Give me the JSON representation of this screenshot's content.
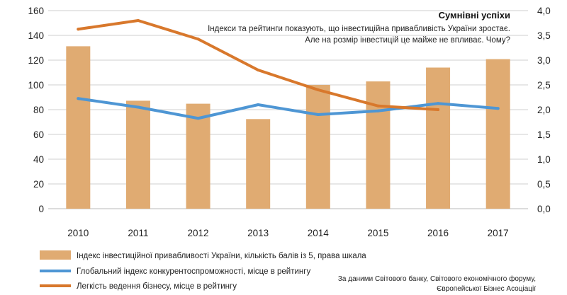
{
  "chart_data": {
    "type": "bar+line",
    "title": "Сумнівні успіхи",
    "subtitle_lines": [
      "Індекси та рейтинги показують, що інвестиційна привабливість України зростає.",
      "Але на розмір інвестицій це майже не впливає. Чому?"
    ],
    "categories": [
      "2010",
      "2011",
      "2012",
      "2013",
      "2014",
      "2015",
      "2016",
      "2017"
    ],
    "left_axis": {
      "min": 0,
      "max": 160,
      "step": 20,
      "tick_labels": [
        "0",
        "20",
        "40",
        "60",
        "80",
        "100",
        "120",
        "140",
        "160"
      ]
    },
    "right_axis": {
      "min": 0,
      "max": 4,
      "step": 0.5,
      "tick_labels": [
        "0,0",
        "0,5",
        "1,0",
        "1,5",
        "2,0",
        "2,5",
        "3,0",
        "3,5",
        "4,0"
      ]
    },
    "grid": "horizontal",
    "series": [
      {
        "name": "Індекс інвестиційної привабливості України, кількість балів із 5, права шкала",
        "type": "bar",
        "axis": "right",
        "color": "#e0ab72",
        "values": [
          3.28,
          2.18,
          2.12,
          1.81,
          2.5,
          2.57,
          2.85,
          3.02
        ]
      },
      {
        "name": "Глобальний індекс конкурентоспроможності,  місце в рейтингу",
        "type": "line",
        "axis": "left",
        "color": "#4e96d4",
        "values": [
          89,
          82,
          73,
          84,
          76,
          79,
          85,
          81
        ]
      },
      {
        "name": "Легкість ведення бізнесу, місце в рейтингу",
        "type": "line",
        "axis": "left",
        "color": "#d8782c",
        "values": [
          145,
          152,
          137,
          112,
          96,
          83,
          80,
          null
        ]
      }
    ],
    "legend_position": "bottom-left",
    "source_lines": [
      "За даними Світового банку, Світового економічного форуму,",
      "Європейської Бізнес Асоціації"
    ]
  }
}
